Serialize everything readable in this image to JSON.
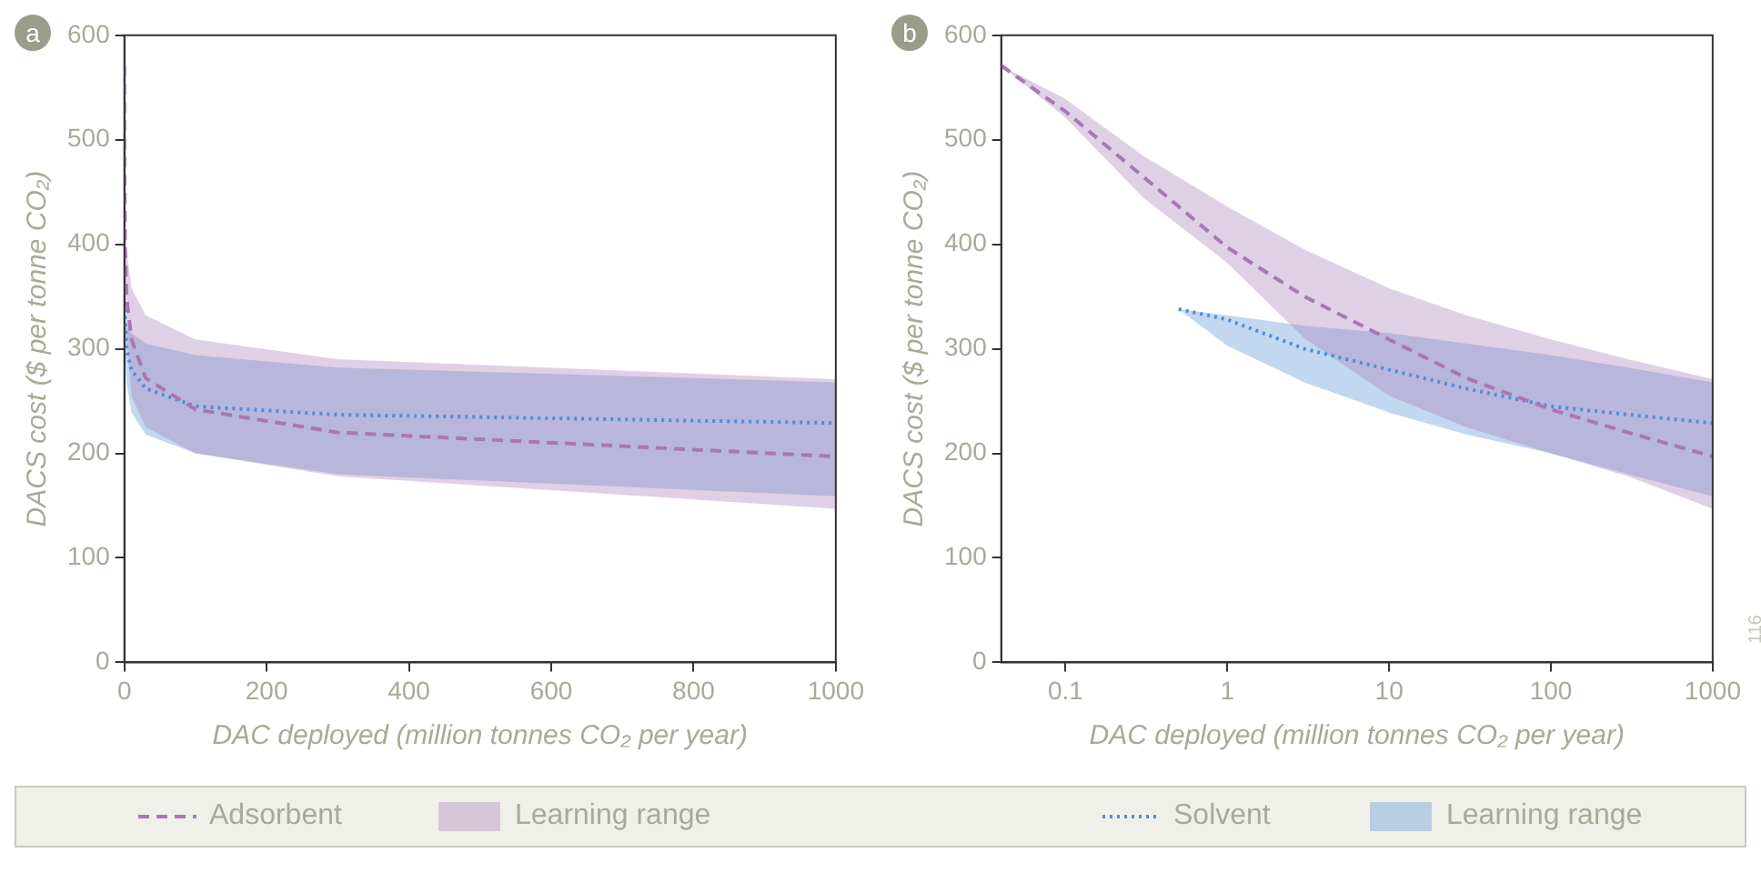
{
  "chart_data": [
    {
      "type": "line",
      "title": "a",
      "xlabel": "DAC deployed (million tonnes CO₂ per year)",
      "ylabel": "DACS cost ($ per tonne CO₂)",
      "xlim": [
        0,
        1000
      ],
      "xticks": [
        0,
        200,
        400,
        600,
        800,
        1000
      ],
      "ylim": [
        0,
        600
      ],
      "yticks": [
        0,
        100,
        200,
        300,
        400,
        500,
        600
      ],
      "grid": false,
      "legend": "bottom",
      "annotations": [
        "Learning range",
        "Learning range"
      ],
      "series": [
        {
          "type": "line",
          "name": "Adsorbent",
          "color": "#a678b4",
          "line_style": "dashed",
          "x": [
            0.04,
            0.1,
            0.3,
            1,
            3,
            10,
            30,
            100,
            300,
            1000
          ],
          "values": [
            571,
            527,
            465,
            397,
            350,
            309,
            272,
            242,
            220,
            197
          ],
          "lower": [
            571,
            521,
            445,
            382,
            310,
            255,
            225,
            200,
            178,
            147
          ],
          "upper": [
            571,
            539,
            485,
            436,
            395,
            358,
            332,
            309,
            290,
            271
          ]
        },
        {
          "type": "line",
          "name": "Solvent",
          "color": "#4f8fd4",
          "line_style": "dotted",
          "x": [
            0.5,
            1,
            3,
            10,
            30,
            100,
            300,
            1000
          ],
          "values": [
            338,
            328,
            300,
            280,
            262,
            245,
            237,
            229
          ],
          "lower": [
            338,
            303,
            268,
            239,
            218,
            200,
            180,
            159
          ],
          "upper": [
            338,
            332,
            322,
            315,
            305,
            294,
            282,
            268
          ]
        }
      ]
    },
    {
      "type": "line",
      "title": "b",
      "xlabel": "DAC deployed (million tonnes CO₂ per year)",
      "ylabel": "DACS cost ($ per tonne CO₂)",
      "log": "x",
      "xlim": [
        0.04,
        1000
      ],
      "xticks": [
        0.1,
        1,
        10,
        100,
        1000
      ],
      "ylim": [
        0,
        600
      ],
      "yticks": [
        0,
        100,
        200,
        300,
        400,
        500,
        600
      ],
      "grid": false,
      "legend": "bottom",
      "annotations": [
        "116"
      ],
      "series": [
        {
          "type": "line",
          "name": "Adsorbent",
          "color": "#a678b4",
          "line_style": "dashed",
          "x": [
            0.04,
            0.1,
            0.3,
            1,
            3,
            10,
            30,
            100,
            300,
            1000
          ],
          "values": [
            571,
            527,
            465,
            397,
            350,
            309,
            272,
            242,
            220,
            197
          ],
          "lower": [
            571,
            521,
            445,
            382,
            310,
            255,
            225,
            200,
            178,
            147
          ],
          "upper": [
            571,
            539,
            485,
            436,
            395,
            358,
            332,
            309,
            290,
            271
          ]
        },
        {
          "type": "line",
          "name": "Solvent",
          "color": "#4f8fd4",
          "line_style": "dotted",
          "x": [
            0.5,
            1,
            3,
            10,
            30,
            100,
            300,
            1000
          ],
          "values": [
            338,
            328,
            300,
            280,
            262,
            245,
            237,
            229
          ],
          "lower": [
            338,
            303,
            268,
            239,
            218,
            200,
            180,
            159
          ],
          "upper": [
            338,
            332,
            322,
            315,
            305,
            294,
            282,
            268
          ]
        }
      ]
    }
  ]
}
